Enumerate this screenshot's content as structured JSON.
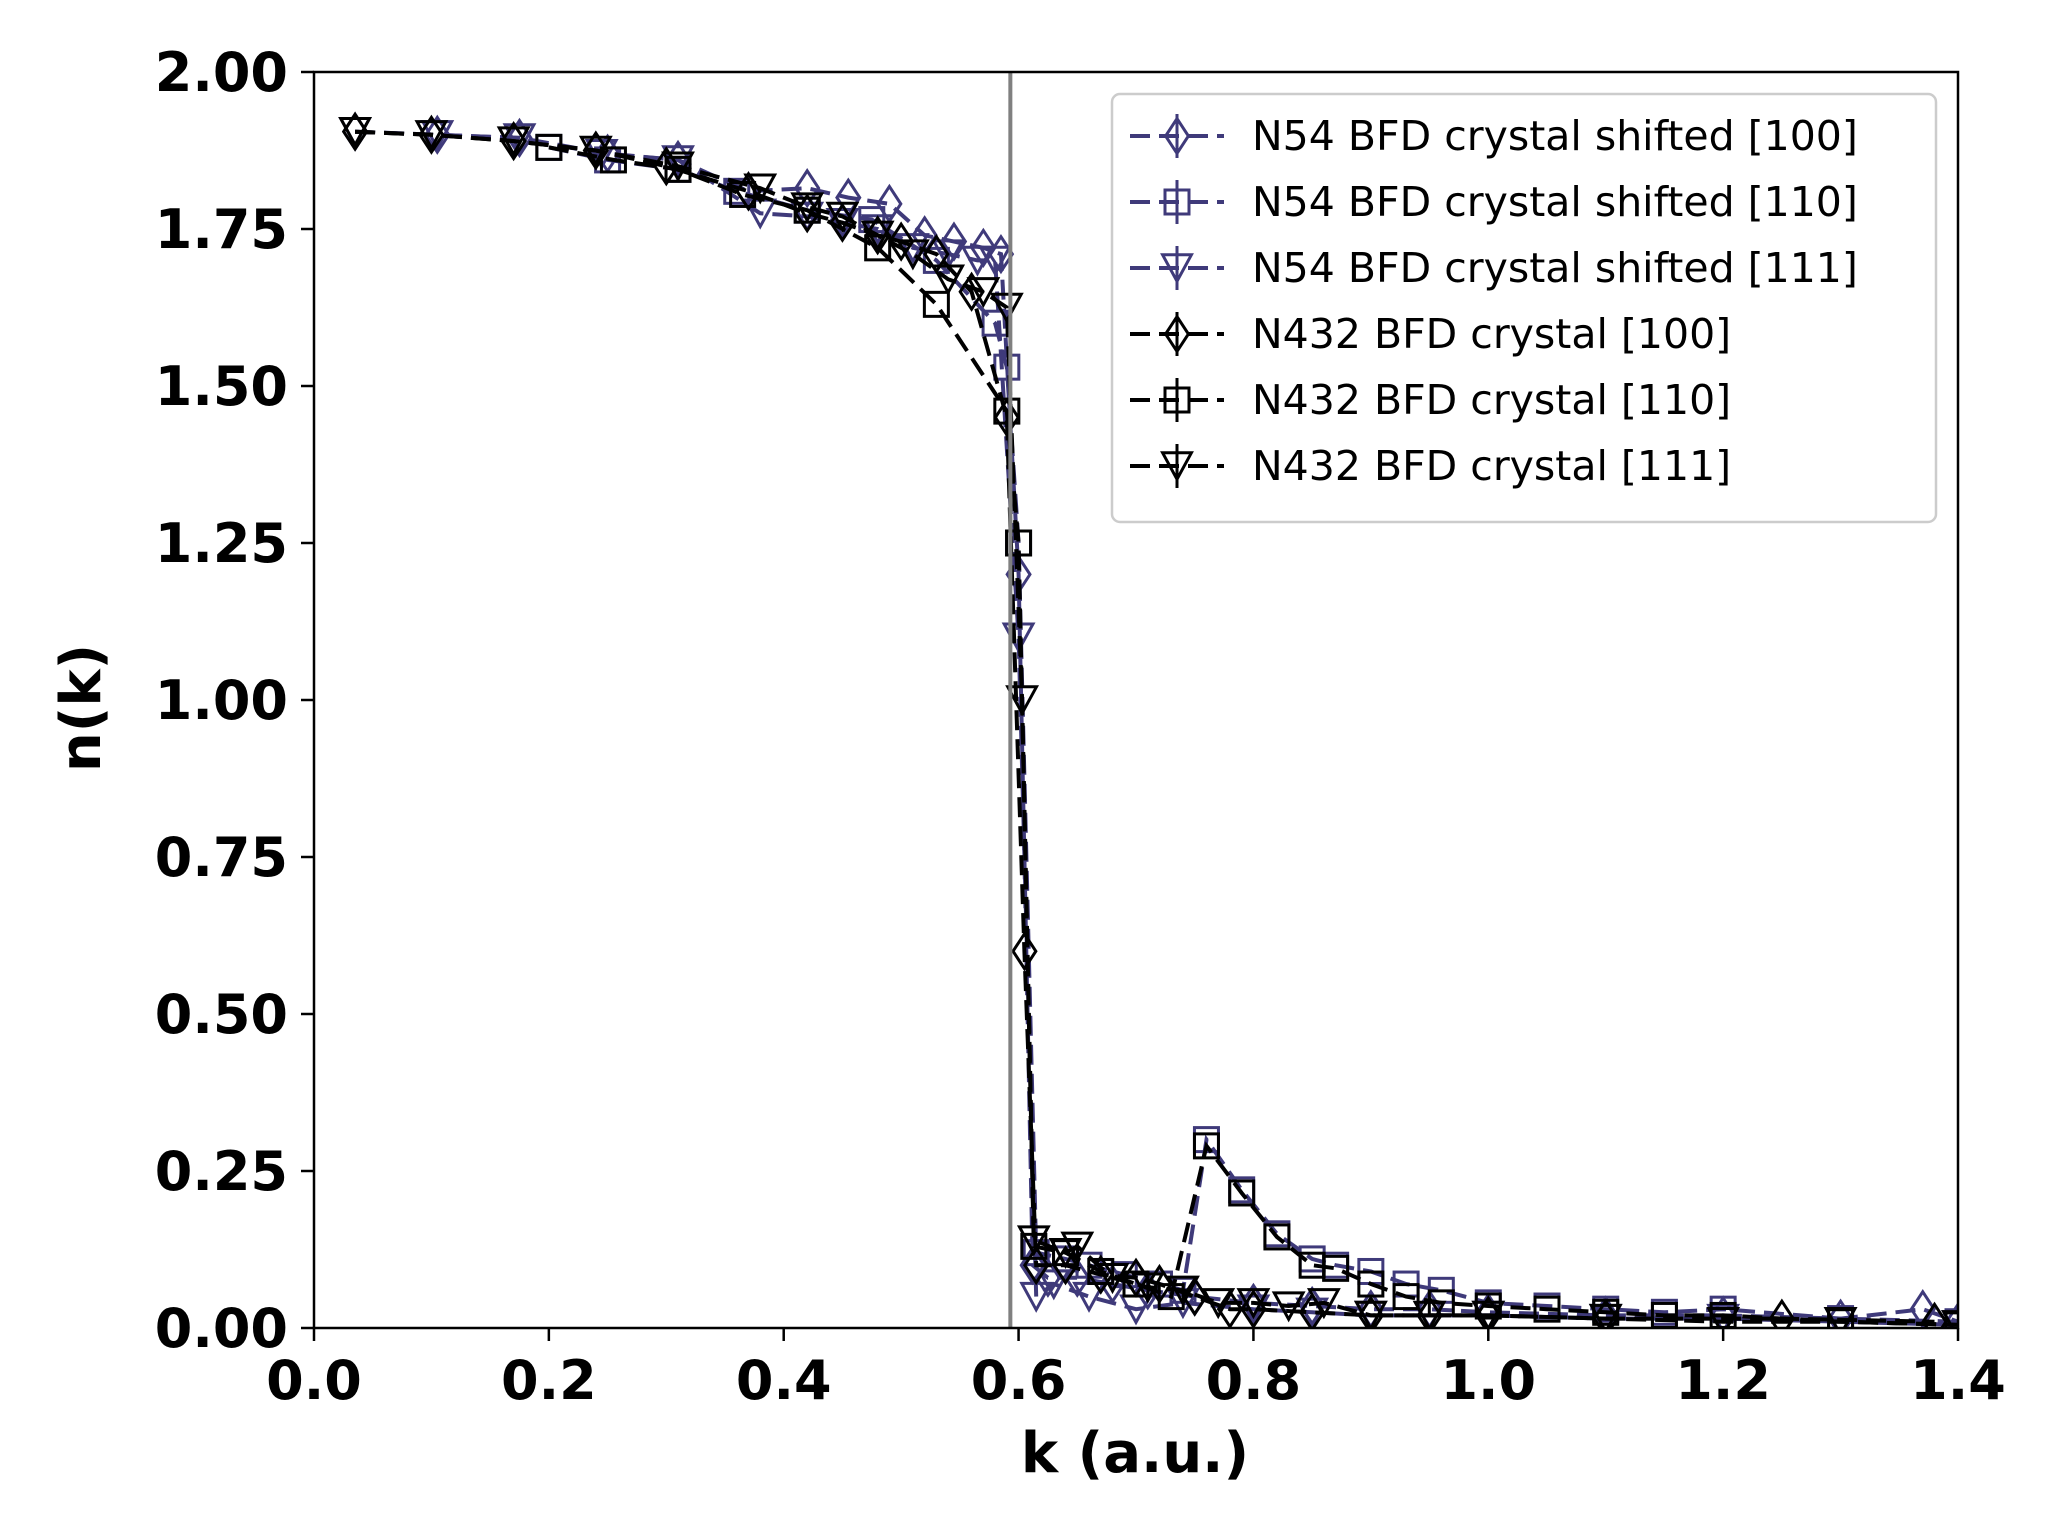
{
  "chart_data": {
    "type": "line",
    "xlabel": "k (a.u.)",
    "ylabel": "n(k)",
    "xlim": [
      0.0,
      1.4
    ],
    "ylim": [
      0.0,
      2.0
    ],
    "xticks": [
      "0.0",
      "0.2",
      "0.4",
      "0.6",
      "0.8",
      "1.0",
      "1.2",
      "1.4"
    ],
    "yticks": [
      "0.00",
      "0.25",
      "0.50",
      "0.75",
      "1.00",
      "1.25",
      "1.50",
      "1.75",
      "2.00"
    ],
    "xtick_values": [
      0.0,
      0.2,
      0.4,
      0.6,
      0.8,
      1.0,
      1.2,
      1.4
    ],
    "ytick_values": [
      0.0,
      0.25,
      0.5,
      0.75,
      1.0,
      1.25,
      1.5,
      1.75,
      2.0
    ],
    "vline": 0.593,
    "grid": false,
    "legend_position": "top-right",
    "series": [
      {
        "name": "N54 BFD crystal shifted [100]",
        "color": "#3f3a7a",
        "marker": "diamond",
        "points": [
          [
            0.035,
            1.905
          ],
          [
            0.105,
            1.9
          ],
          [
            0.175,
            1.895
          ],
          [
            0.25,
            1.87
          ],
          [
            0.31,
            1.86
          ],
          [
            0.37,
            1.81
          ],
          [
            0.42,
            1.815
          ],
          [
            0.455,
            1.8
          ],
          [
            0.49,
            1.79
          ],
          [
            0.52,
            1.74
          ],
          [
            0.545,
            1.73
          ],
          [
            0.57,
            1.72
          ],
          [
            0.585,
            1.71
          ],
          [
            0.6,
            1.2
          ],
          [
            0.612,
            0.1
          ],
          [
            0.625,
            0.08
          ],
          [
            0.65,
            0.08
          ],
          [
            0.68,
            0.07
          ],
          [
            0.71,
            0.06
          ],
          [
            0.75,
            0.05
          ],
          [
            0.8,
            0.04
          ],
          [
            0.85,
            0.035
          ],
          [
            0.9,
            0.03
          ],
          [
            0.95,
            0.03
          ],
          [
            1.0,
            0.025
          ],
          [
            1.1,
            0.02
          ],
          [
            1.2,
            0.02
          ],
          [
            1.3,
            0.015
          ],
          [
            1.37,
            0.03
          ],
          [
            1.4,
            0.01
          ]
        ]
      },
      {
        "name": "N54 BFD crystal shifted [110]",
        "color": "#3f3a7a",
        "marker": "square",
        "points": [
          [
            0.2,
            1.88
          ],
          [
            0.25,
            1.86
          ],
          [
            0.31,
            1.845
          ],
          [
            0.36,
            1.81
          ],
          [
            0.42,
            1.78
          ],
          [
            0.475,
            1.765
          ],
          [
            0.53,
            1.7
          ],
          [
            0.58,
            1.6
          ],
          [
            0.59,
            1.53
          ],
          [
            0.6,
            1.25
          ],
          [
            0.615,
            0.12
          ],
          [
            0.64,
            0.11
          ],
          [
            0.66,
            0.1
          ],
          [
            0.69,
            0.085
          ],
          [
            0.72,
            0.07
          ],
          [
            0.74,
            0.06
          ],
          [
            0.76,
            0.3
          ],
          [
            0.79,
            0.22
          ],
          [
            0.82,
            0.15
          ],
          [
            0.85,
            0.11
          ],
          [
            0.87,
            0.1
          ],
          [
            0.9,
            0.09
          ],
          [
            0.93,
            0.07
          ],
          [
            0.96,
            0.06
          ],
          [
            1.0,
            0.04
          ],
          [
            1.05,
            0.035
          ],
          [
            1.1,
            0.03
          ],
          [
            1.15,
            0.025
          ],
          [
            1.2,
            0.03
          ],
          [
            1.3,
            0.015
          ],
          [
            1.4,
            0.01
          ]
        ]
      },
      {
        "name": "N54 BFD crystal shifted [111]",
        "color": "#3f3a7a",
        "marker": "triangle-down",
        "points": [
          [
            0.035,
            1.905
          ],
          [
            0.105,
            1.9
          ],
          [
            0.175,
            1.895
          ],
          [
            0.245,
            1.87
          ],
          [
            0.31,
            1.86
          ],
          [
            0.38,
            1.775
          ],
          [
            0.42,
            1.77
          ],
          [
            0.45,
            1.76
          ],
          [
            0.48,
            1.75
          ],
          [
            0.51,
            1.72
          ],
          [
            0.54,
            1.71
          ],
          [
            0.565,
            1.7
          ],
          [
            0.58,
            1.7
          ],
          [
            0.6,
            1.1
          ],
          [
            0.615,
            0.05
          ],
          [
            0.63,
            0.07
          ],
          [
            0.66,
            0.05
          ],
          [
            0.7,
            0.03
          ],
          [
            0.74,
            0.04
          ],
          [
            0.8,
            0.03
          ],
          [
            0.85,
            0.025
          ],
          [
            0.9,
            0.02
          ],
          [
            1.0,
            0.02
          ],
          [
            1.1,
            0.015
          ],
          [
            1.2,
            0.015
          ],
          [
            1.3,
            0.01
          ],
          [
            1.4,
            0.005
          ]
        ]
      },
      {
        "name": "N432 BFD crystal [100]",
        "color": "#000000",
        "marker": "diamond",
        "points": [
          [
            0.035,
            1.905
          ],
          [
            0.1,
            1.9
          ],
          [
            0.17,
            1.89
          ],
          [
            0.24,
            1.875
          ],
          [
            0.3,
            1.85
          ],
          [
            0.37,
            1.81
          ],
          [
            0.42,
            1.775
          ],
          [
            0.45,
            1.76
          ],
          [
            0.48,
            1.74
          ],
          [
            0.5,
            1.73
          ],
          [
            0.53,
            1.71
          ],
          [
            0.56,
            1.65
          ],
          [
            0.59,
            1.45
          ],
          [
            0.605,
            0.6
          ],
          [
            0.615,
            0.1
          ],
          [
            0.64,
            0.1
          ],
          [
            0.67,
            0.085
          ],
          [
            0.7,
            0.08
          ],
          [
            0.72,
            0.07
          ],
          [
            0.75,
            0.05
          ],
          [
            0.78,
            0.03
          ],
          [
            0.8,
            0.03
          ],
          [
            0.85,
            0.025
          ],
          [
            0.9,
            0.02
          ],
          [
            0.95,
            0.02
          ],
          [
            1.0,
            0.02
          ],
          [
            1.1,
            0.015
          ],
          [
            1.25,
            0.015
          ],
          [
            1.38,
            0.01
          ]
        ]
      },
      {
        "name": "N432 BFD crystal [110]",
        "color": "#000000",
        "marker": "square",
        "points": [
          [
            0.2,
            1.88
          ],
          [
            0.255,
            1.86
          ],
          [
            0.31,
            1.845
          ],
          [
            0.365,
            1.805
          ],
          [
            0.42,
            1.78
          ],
          [
            0.48,
            1.72
          ],
          [
            0.53,
            1.63
          ],
          [
            0.59,
            1.46
          ],
          [
            0.6,
            1.25
          ],
          [
            0.613,
            0.13
          ],
          [
            0.64,
            0.12
          ],
          [
            0.67,
            0.09
          ],
          [
            0.7,
            0.07
          ],
          [
            0.73,
            0.05
          ],
          [
            0.76,
            0.29
          ],
          [
            0.79,
            0.215
          ],
          [
            0.82,
            0.145
          ],
          [
            0.85,
            0.1
          ],
          [
            0.87,
            0.095
          ],
          [
            0.9,
            0.07
          ],
          [
            0.93,
            0.05
          ],
          [
            0.96,
            0.04
          ],
          [
            1.0,
            0.035
          ],
          [
            1.05,
            0.03
          ],
          [
            1.1,
            0.025
          ],
          [
            1.15,
            0.02
          ],
          [
            1.2,
            0.02
          ],
          [
            1.3,
            0.01
          ],
          [
            1.4,
            0.005
          ]
        ]
      },
      {
        "name": "N432 BFD crystal [111]",
        "color": "#000000",
        "marker": "triangle-down",
        "points": [
          [
            0.035,
            1.905
          ],
          [
            0.1,
            1.9
          ],
          [
            0.17,
            1.89
          ],
          [
            0.24,
            1.875
          ],
          [
            0.31,
            1.85
          ],
          [
            0.38,
            1.815
          ],
          [
            0.42,
            1.785
          ],
          [
            0.45,
            1.77
          ],
          [
            0.48,
            1.74
          ],
          [
            0.51,
            1.71
          ],
          [
            0.54,
            1.67
          ],
          [
            0.57,
            1.65
          ],
          [
            0.59,
            1.625
          ],
          [
            0.603,
            1.0
          ],
          [
            0.613,
            0.14
          ],
          [
            0.64,
            0.12
          ],
          [
            0.65,
            0.13
          ],
          [
            0.68,
            0.08
          ],
          [
            0.71,
            0.065
          ],
          [
            0.74,
            0.06
          ],
          [
            0.77,
            0.04
          ],
          [
            0.8,
            0.04
          ],
          [
            0.83,
            0.035
          ],
          [
            0.86,
            0.04
          ],
          [
            0.9,
            0.02
          ],
          [
            0.95,
            0.02
          ],
          [
            1.0,
            0.02
          ],
          [
            1.1,
            0.015
          ],
          [
            1.2,
            0.01
          ],
          [
            1.3,
            0.01
          ],
          [
            1.4,
            0.005
          ]
        ]
      }
    ]
  }
}
